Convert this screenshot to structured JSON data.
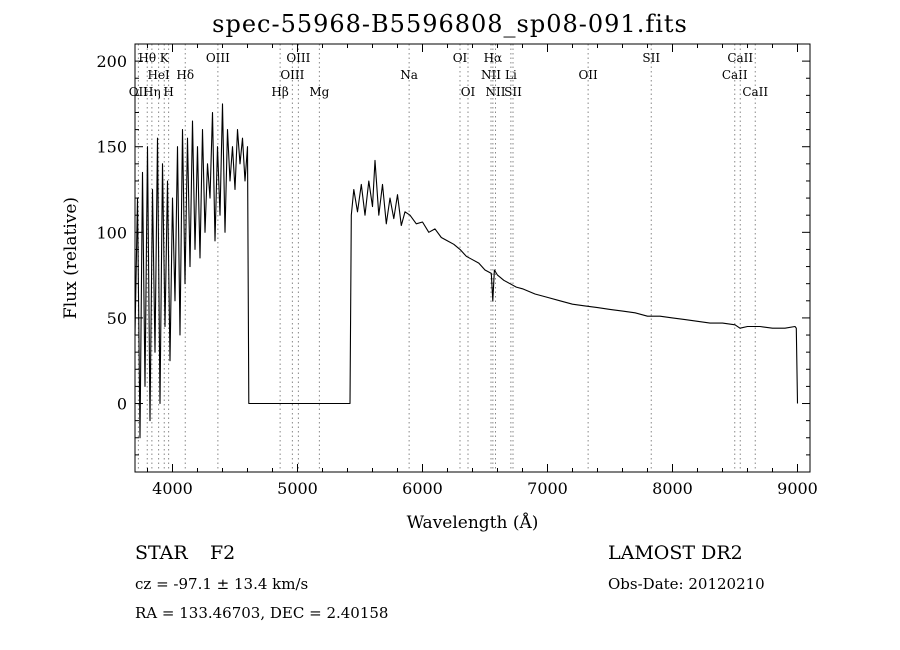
{
  "chart_data": {
    "type": "line",
    "title": "spec-55968-B5596808_sp08-091.fits",
    "xlabel": "Wavelength (Å)",
    "ylabel": "Flux (relative)",
    "xlim": [
      3700,
      9100
    ],
    "ylim": [
      -40,
      210
    ],
    "x_ticks": [
      4000,
      5000,
      6000,
      7000,
      8000,
      9000
    ],
    "y_ticks": [
      0,
      50,
      100,
      150,
      200
    ],
    "grid": false,
    "series": [
      {
        "x": [
          3700,
          3720,
          3740,
          3760,
          3780,
          3800,
          3820,
          3840,
          3860,
          3880,
          3900,
          3920,
          3940,
          3960,
          3980,
          4000,
          4020,
          4040,
          4060,
          4080,
          4100,
          4120,
          4140,
          4160,
          4180,
          4200,
          4220,
          4240,
          4260,
          4280,
          4300,
          4320,
          4340,
          4360,
          4380,
          4400,
          4420,
          4440,
          4460,
          4480,
          4500,
          4520,
          4540,
          4560,
          4580,
          4600,
          4610,
          4620,
          4700,
          4800,
          4900,
          5000,
          5100,
          5200,
          5300,
          5400,
          5420,
          5430,
          5450,
          5480,
          5510,
          5540,
          5570,
          5600,
          5620,
          5650,
          5680,
          5710,
          5740,
          5770,
          5800,
          5830,
          5860,
          5900,
          5950,
          6000,
          6050,
          6100,
          6150,
          6200,
          6250,
          6300,
          6350,
          6400,
          6450,
          6500,
          6550,
          6562,
          6575,
          6600,
          6650,
          6700,
          6750,
          6800,
          6900,
          7000,
          7100,
          7200,
          7300,
          7400,
          7500,
          7600,
          7700,
          7800,
          7900,
          8000,
          8100,
          8200,
          8300,
          8400,
          8500,
          8540,
          8600,
          8700,
          8800,
          8900,
          8980,
          8990,
          9000
        ],
        "values": [
          40,
          120,
          -20,
          135,
          10,
          150,
          -10,
          125,
          30,
          155,
          0,
          140,
          45,
          130,
          25,
          120,
          60,
          150,
          40,
          160,
          70,
          155,
          80,
          165,
          90,
          150,
          85,
          160,
          100,
          140,
          120,
          170,
          95,
          150,
          110,
          175,
          100,
          160,
          130,
          150,
          125,
          160,
          140,
          155,
          130,
          150,
          0,
          0,
          0,
          0,
          0,
          0,
          0,
          0,
          0,
          0,
          0,
          110,
          125,
          112,
          128,
          110,
          130,
          115,
          142,
          110,
          128,
          105,
          120,
          108,
          122,
          104,
          112,
          110,
          105,
          106,
          100,
          102,
          97,
          95,
          93,
          90,
          86,
          84,
          82,
          78,
          76,
          60,
          78,
          75,
          72,
          70,
          68,
          67,
          64,
          62,
          60,
          58,
          57,
          56,
          55,
          54,
          53,
          51,
          51,
          50,
          49,
          48,
          47,
          47,
          46,
          44,
          45,
          45,
          44,
          44,
          45,
          44,
          0
        ]
      }
    ],
    "line_markers": [
      {
        "x": 3727,
        "label": "OII",
        "row": 3
      },
      {
        "x": 3798,
        "label": "Hθ",
        "row": 1
      },
      {
        "x": 3835,
        "label": "Hη",
        "row": 3
      },
      {
        "x": 3889,
        "label": "HeI",
        "row": 2
      },
      {
        "x": 3934,
        "label": "K",
        "row": 1
      },
      {
        "x": 3969,
        "label": "H",
        "row": 3
      },
      {
        "x": 4102,
        "label": "Hδ",
        "row": 2
      },
      {
        "x": 4363,
        "label": "OIII",
        "row": 1
      },
      {
        "x": 4861,
        "label": "Hβ",
        "row": 3
      },
      {
        "x": 4959,
        "label": "OIII",
        "row": 2
      },
      {
        "x": 5007,
        "label": "OIII",
        "row": 1
      },
      {
        "x": 5175,
        "label": "Mg",
        "row": 3
      },
      {
        "x": 5893,
        "label": "Na",
        "row": 2
      },
      {
        "x": 6300,
        "label": "OI",
        "row": 1
      },
      {
        "x": 6364,
        "label": "OI",
        "row": 3
      },
      {
        "x": 6548,
        "label": "NII",
        "row": 2
      },
      {
        "x": 6563,
        "label": "Hα",
        "row": 1
      },
      {
        "x": 6584,
        "label": "NII",
        "row": 3
      },
      {
        "x": 6707,
        "label": "Li",
        "row": 2
      },
      {
        "x": 6724,
        "label": "SII",
        "row": 3
      },
      {
        "x": 7325,
        "label": "OII",
        "row": 2
      },
      {
        "x": 7830,
        "label": "SII",
        "row": 1
      },
      {
        "x": 8498,
        "label": "CaII",
        "row": 2
      },
      {
        "x": 8542,
        "label": "CaII",
        "row": 1
      },
      {
        "x": 8662,
        "label": "CaII",
        "row": 3
      }
    ]
  },
  "info": {
    "class_label": "STAR",
    "subclass": "F2",
    "survey": "LAMOST DR2",
    "cz": "cz = -97.1 ± 13.4 km/s",
    "obs_date": "Obs-Date: 20120210",
    "radec": "RA = 133.46703, DEC =   2.40158"
  }
}
